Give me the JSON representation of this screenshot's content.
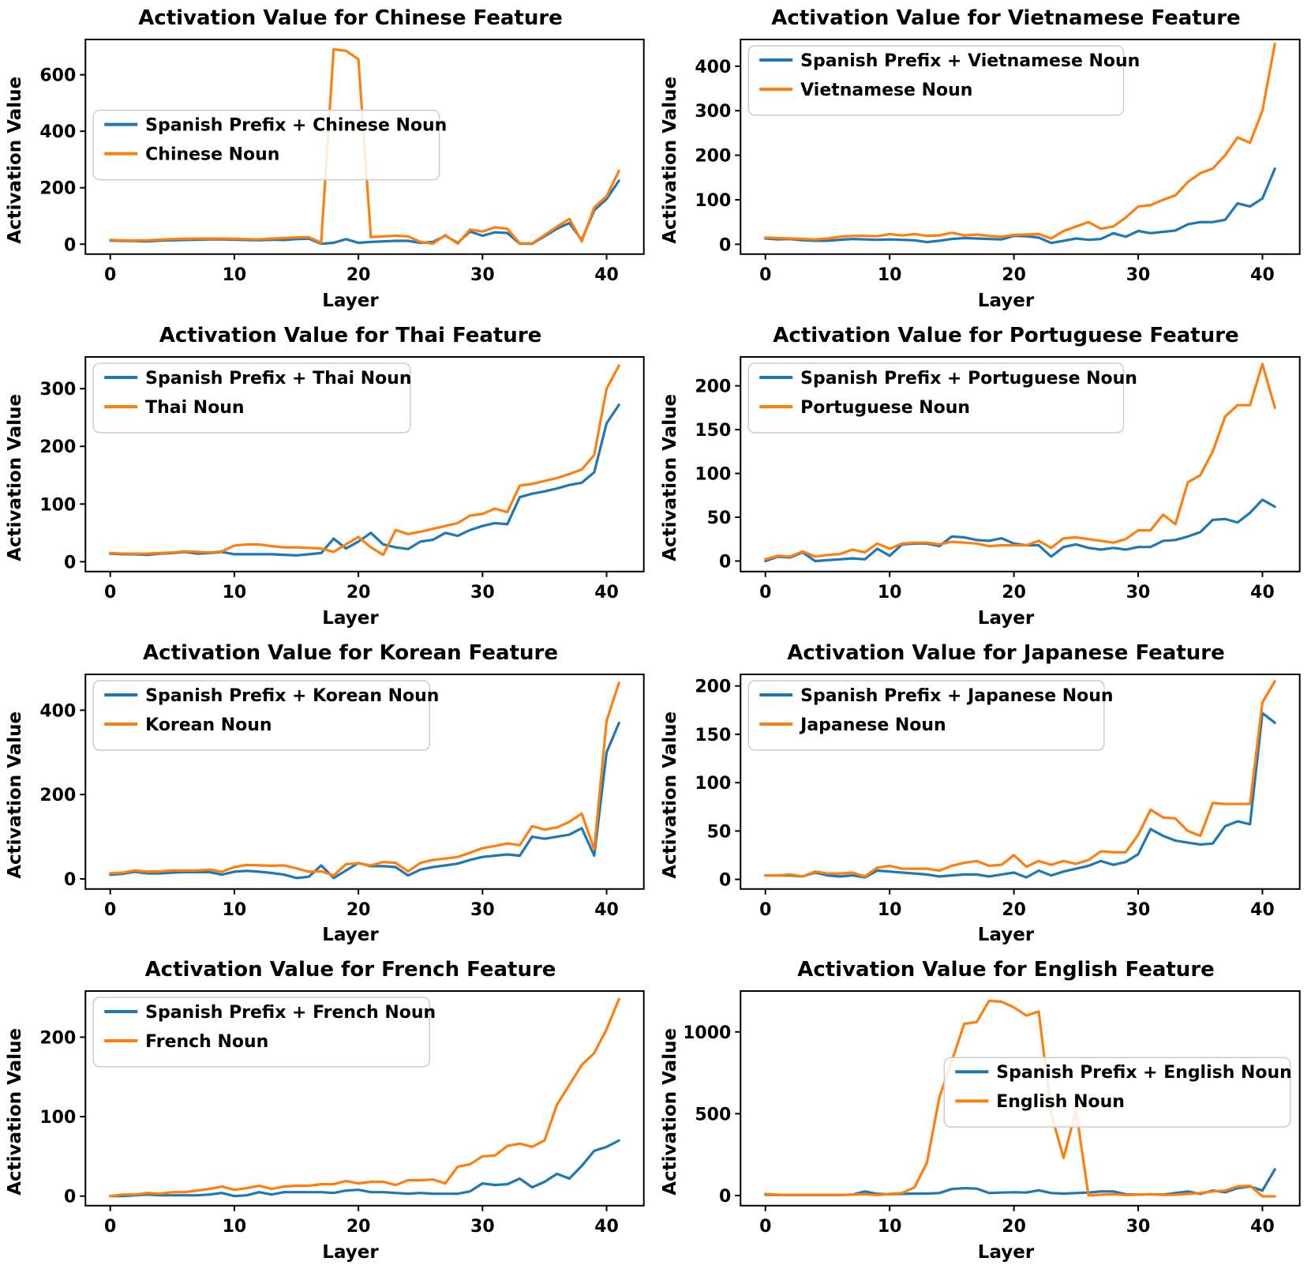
{
  "layers": [
    0,
    1,
    2,
    3,
    4,
    5,
    6,
    7,
    8,
    9,
    10,
    11,
    12,
    13,
    14,
    15,
    16,
    17,
    18,
    19,
    20,
    21,
    22,
    23,
    24,
    25,
    26,
    27,
    28,
    29,
    30,
    31,
    32,
    33,
    34,
    35,
    36,
    37,
    38,
    39,
    40,
    41
  ],
  "colors": {
    "blue": "#1f77b4",
    "orange": "#ff7f0e"
  },
  "chart_data": [
    {
      "type": "line",
      "title": "Activation Value for Chinese Feature",
      "xlabel": "Layer",
      "ylabel": "Activation Value",
      "xticks": [
        0,
        10,
        20,
        30,
        40
      ],
      "yticks": [
        0,
        200,
        400,
        600
      ],
      "xlim": [
        -2,
        43
      ],
      "ylim": [
        -35,
        725
      ],
      "legend_loc": "center-left",
      "series": [
        {
          "name": "Spanish Prefix + Chinese Noun",
          "color": "#1f77b4",
          "values": [
            13,
            12,
            11,
            10,
            13,
            14,
            15,
            16,
            17,
            17,
            16,
            15,
            14,
            16,
            15,
            18,
            20,
            2,
            5,
            18,
            5,
            8,
            10,
            12,
            12,
            5,
            8,
            30,
            5,
            45,
            30,
            42,
            40,
            2,
            2,
            28,
            55,
            75,
            15,
            120,
            160,
            225
          ]
        },
        {
          "name": "Chinese Noun",
          "color": "#ff7f0e",
          "values": [
            15,
            14,
            13,
            14,
            16,
            18,
            19,
            20,
            20,
            20,
            19,
            18,
            17,
            20,
            22,
            24,
            25,
            5,
            690,
            685,
            655,
            25,
            28,
            30,
            28,
            8,
            2,
            32,
            2,
            52,
            45,
            60,
            55,
            3,
            3,
            32,
            62,
            90,
            10,
            130,
            170,
            260
          ]
        }
      ]
    },
    {
      "type": "line",
      "title": "Activation Value for Vietnamese Feature",
      "xlabel": "Layer",
      "ylabel": "Activation Value",
      "xticks": [
        0,
        10,
        20,
        30,
        40
      ],
      "yticks": [
        0,
        100,
        200,
        300,
        400
      ],
      "xlim": [
        -2,
        43
      ],
      "ylim": [
        -22,
        460
      ],
      "legend_loc": "upper-left",
      "series": [
        {
          "name": "Spanish Prefix + Vietnamese Noun",
          "color": "#1f77b4",
          "values": [
            13,
            11,
            12,
            9,
            8,
            8,
            10,
            12,
            11,
            10,
            11,
            10,
            9,
            5,
            8,
            12,
            14,
            13,
            12,
            11,
            19,
            18,
            15,
            3,
            8,
            13,
            10,
            12,
            25,
            17,
            30,
            25,
            28,
            31,
            45,
            50,
            50,
            55,
            92,
            85,
            103,
            170
          ]
        },
        {
          "name": "Vietnamese Noun",
          "color": "#ff7f0e",
          "values": [
            15,
            14,
            13,
            12,
            11,
            13,
            17,
            19,
            19,
            18,
            23,
            20,
            23,
            19,
            20,
            26,
            20,
            22,
            19,
            17,
            21,
            22,
            23,
            13,
            30,
            40,
            50,
            35,
            40,
            60,
            85,
            88,
            100,
            110,
            140,
            160,
            170,
            200,
            240,
            228,
            300,
            450
          ]
        }
      ]
    },
    {
      "type": "line",
      "title": "Activation Value for Thai Feature",
      "xlabel": "Layer",
      "ylabel": "Activation Value",
      "xticks": [
        0,
        10,
        20,
        30,
        40
      ],
      "yticks": [
        0,
        100,
        200,
        300
      ],
      "xlim": [
        -2,
        43
      ],
      "ylim": [
        -17,
        355
      ],
      "legend_loc": "upper-left",
      "series": [
        {
          "name": "Spanish Prefix + Thai Noun",
          "color": "#1f77b4",
          "values": [
            14,
            13,
            13,
            12,
            14,
            15,
            17,
            14,
            15,
            17,
            13,
            13,
            13,
            13,
            12,
            11,
            13,
            15,
            40,
            23,
            35,
            50,
            30,
            25,
            22,
            35,
            38,
            50,
            45,
            55,
            62,
            67,
            65,
            112,
            118,
            122,
            127,
            133,
            137,
            155,
            240,
            272
          ]
        },
        {
          "name": "Thai Noun",
          "color": "#ff7f0e",
          "values": [
            15,
            14,
            14,
            14,
            15,
            16,
            18,
            17,
            16,
            18,
            28,
            30,
            30,
            27,
            25,
            25,
            24,
            23,
            17,
            30,
            43,
            25,
            12,
            55,
            48,
            52,
            57,
            62,
            67,
            80,
            83,
            92,
            86,
            132,
            135,
            140,
            145,
            152,
            160,
            185,
            300,
            340
          ]
        }
      ]
    },
    {
      "type": "line",
      "title": "Activation Value for Portuguese Feature",
      "xlabel": "Layer",
      "ylabel": "Activation Value",
      "xticks": [
        0,
        10,
        20,
        30,
        40
      ],
      "yticks": [
        0,
        50,
        100,
        150,
        200
      ],
      "xlim": [
        -2,
        43
      ],
      "ylim": [
        -12,
        233
      ],
      "legend_loc": "upper-left",
      "series": [
        {
          "name": "Spanish Prefix + Portuguese Noun",
          "color": "#1f77b4",
          "values": [
            0,
            5,
            4,
            10,
            0,
            1,
            2,
            3,
            2,
            14,
            6,
            19,
            20,
            20,
            17,
            28,
            27,
            24,
            23,
            26,
            20,
            18,
            18,
            5,
            16,
            19,
            15,
            13,
            15,
            13,
            16,
            16,
            23,
            24,
            28,
            33,
            47,
            48,
            44,
            55,
            70,
            62
          ]
        },
        {
          "name": "Portuguese Noun",
          "color": "#ff7f0e",
          "values": [
            2,
            6,
            5,
            11,
            5,
            7,
            8,
            13,
            10,
            20,
            14,
            20,
            21,
            21,
            19,
            22,
            21,
            20,
            17,
            18,
            18,
            18,
            23,
            15,
            26,
            27,
            25,
            23,
            21,
            25,
            35,
            35,
            53,
            42,
            90,
            98,
            125,
            165,
            178,
            178,
            225,
            175
          ]
        }
      ]
    },
    {
      "type": "line",
      "title": "Activation Value for Korean Feature",
      "xlabel": "Layer",
      "ylabel": "Activation Value",
      "xticks": [
        0,
        10,
        20,
        30,
        40
      ],
      "yticks": [
        0,
        200,
        400
      ],
      "xlim": [
        -2,
        43
      ],
      "ylim": [
        -24,
        485
      ],
      "legend_loc": "upper-left",
      "series": [
        {
          "name": "Spanish Prefix + Korean Noun",
          "color": "#1f77b4",
          "values": [
            10,
            12,
            17,
            13,
            13,
            15,
            16,
            16,
            16,
            10,
            17,
            19,
            17,
            14,
            10,
            2,
            5,
            32,
            2,
            20,
            38,
            30,
            30,
            28,
            8,
            22,
            28,
            32,
            36,
            45,
            52,
            55,
            58,
            55,
            100,
            95,
            100,
            105,
            120,
            55,
            300,
            370
          ]
        },
        {
          "name": "Korean Noun",
          "color": "#ff7f0e",
          "values": [
            13,
            15,
            20,
            17,
            18,
            20,
            20,
            20,
            22,
            17,
            28,
            33,
            32,
            31,
            32,
            25,
            17,
            18,
            8,
            35,
            37,
            32,
            40,
            38,
            18,
            38,
            45,
            48,
            52,
            62,
            73,
            78,
            84,
            80,
            125,
            117,
            122,
            135,
            155,
            70,
            375,
            465
          ]
        }
      ]
    },
    {
      "type": "line",
      "title": "Activation Value for Japanese Feature",
      "xlabel": "Layer",
      "ylabel": "Activation Value",
      "xticks": [
        0,
        10,
        20,
        30,
        40
      ],
      "yticks": [
        0,
        50,
        100,
        150,
        200
      ],
      "xlim": [
        -2,
        43
      ],
      "ylim": [
        -10,
        212
      ],
      "legend_loc": "upper-left",
      "series": [
        {
          "name": "Spanish Prefix + Japanese Noun",
          "color": "#1f77b4",
          "values": [
            4,
            4,
            4,
            3,
            7,
            4,
            3,
            4,
            2,
            9,
            8,
            7,
            6,
            5,
            3,
            4,
            5,
            5,
            3,
            5,
            7,
            2,
            9,
            4,
            8,
            11,
            14,
            19,
            15,
            18,
            26,
            52,
            45,
            40,
            38,
            36,
            37,
            55,
            60,
            57,
            172,
            162
          ]
        },
        {
          "name": "Japanese Noun",
          "color": "#ff7f0e",
          "values": [
            4,
            4,
            5,
            3,
            8,
            6,
            6,
            7,
            3,
            12,
            14,
            11,
            11,
            11,
            9,
            14,
            17,
            19,
            14,
            15,
            25,
            13,
            19,
            15,
            19,
            16,
            20,
            29,
            28,
            28,
            46,
            72,
            64,
            63,
            50,
            45,
            79,
            78,
            78,
            78,
            183,
            205
          ]
        }
      ]
    },
    {
      "type": "line",
      "title": "Activation Value for French Feature",
      "xlabel": "Layer",
      "ylabel": "Activation Value",
      "xticks": [
        0,
        10,
        20,
        30,
        40
      ],
      "yticks": [
        0,
        100,
        200
      ],
      "xlim": [
        -2,
        43
      ],
      "ylim": [
        -12,
        258
      ],
      "legend_loc": "upper-left",
      "series": [
        {
          "name": "Spanish Prefix + French Noun",
          "color": "#1f77b4",
          "values": [
            0,
            0,
            1,
            2,
            1,
            1,
            1,
            1,
            2,
            4,
            0,
            1,
            5,
            2,
            5,
            5,
            5,
            5,
            4,
            7,
            8,
            5,
            5,
            4,
            3,
            4,
            3,
            3,
            3,
            6,
            16,
            14,
            15,
            22,
            11,
            18,
            28,
            22,
            38,
            57,
            62,
            70
          ]
        },
        {
          "name": "French Noun",
          "color": "#ff7f0e",
          "values": [
            0,
            2,
            2,
            4,
            3,
            5,
            5,
            7,
            9,
            12,
            8,
            10,
            13,
            9,
            12,
            13,
            13,
            15,
            15,
            19,
            16,
            18,
            18,
            14,
            20,
            20,
            21,
            16,
            37,
            40,
            50,
            51,
            63,
            66,
            62,
            70,
            115,
            140,
            165,
            180,
            210,
            248
          ]
        }
      ]
    },
    {
      "type": "line",
      "title": "Activation Value for English Feature",
      "xlabel": "Layer",
      "ylabel": "Activation Value",
      "xticks": [
        0,
        10,
        20,
        30,
        40
      ],
      "yticks": [
        0,
        500,
        1000
      ],
      "xlim": [
        -2,
        43
      ],
      "ylim": [
        -62,
        1250
      ],
      "legend_loc": "center-right",
      "series": [
        {
          "name": "Spanish Prefix + English Noun",
          "color": "#1f77b4",
          "values": [
            5,
            3,
            3,
            3,
            3,
            3,
            3,
            5,
            25,
            10,
            8,
            10,
            12,
            12,
            15,
            40,
            45,
            42,
            15,
            18,
            20,
            18,
            32,
            15,
            12,
            15,
            18,
            25,
            25,
            8,
            5,
            8,
            5,
            15,
            25,
            10,
            30,
            20,
            45,
            55,
            30,
            160
          ]
        },
        {
          "name": "English Noun",
          "color": "#ff7f0e",
          "values": [
            10,
            5,
            4,
            4,
            4,
            4,
            4,
            5,
            8,
            3,
            10,
            15,
            50,
            200,
            600,
            820,
            1050,
            1060,
            1190,
            1185,
            1150,
            1100,
            1125,
            500,
            230,
            520,
            0,
            5,
            8,
            3,
            5,
            8,
            3,
            5,
            10,
            15,
            25,
            30,
            55,
            60,
            -5,
            -5
          ]
        }
      ]
    }
  ]
}
